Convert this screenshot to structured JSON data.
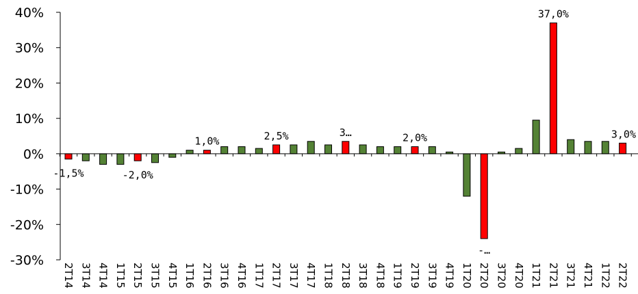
{
  "chart_data": {
    "type": "bar",
    "title": "",
    "xlabel": "",
    "ylabel": "",
    "ylim": [
      -30,
      40
    ],
    "yticks": [
      "-30%",
      "-20%",
      "-10%",
      "0%",
      "10%",
      "20%",
      "30%",
      "40%"
    ],
    "grid": false,
    "legend": "none",
    "categories": [
      "2T14",
      "3T14",
      "4T14",
      "1T15",
      "2T15",
      "3T15",
      "4T15",
      "1T16",
      "2T16",
      "3T16",
      "4T16",
      "1T17",
      "2T17",
      "3T17",
      "4T17",
      "1T18",
      "2T18",
      "3T18",
      "4T18",
      "1T19",
      "2T19",
      "3T19",
      "4T19",
      "1T20",
      "2T20",
      "3T20",
      "4T20",
      "1T21",
      "2T21",
      "3T21",
      "4T21",
      "1T22",
      "2T22"
    ],
    "values": [
      -1.5,
      -2.0,
      -3.0,
      -3.0,
      -2.0,
      -2.5,
      -1.0,
      1.0,
      1.0,
      2.0,
      2.0,
      1.5,
      2.5,
      2.5,
      3.5,
      2.5,
      3.5,
      2.5,
      2.0,
      2.0,
      2.0,
      2.0,
      0.5,
      -12.0,
      -24.0,
      0.5,
      1.5,
      9.5,
      37.0,
      4.0,
      3.5,
      3.5,
      3.0
    ],
    "highlight": [
      true,
      false,
      false,
      false,
      true,
      false,
      false,
      false,
      true,
      false,
      false,
      false,
      true,
      false,
      false,
      false,
      true,
      false,
      false,
      false,
      true,
      false,
      false,
      false,
      true,
      false,
      false,
      false,
      true,
      false,
      false,
      false,
      true
    ],
    "data_labels": [
      "-1,5%",
      "",
      "",
      "",
      "-2,0%",
      "",
      "",
      "",
      "1,0%",
      "",
      "",
      "",
      "2,5%",
      "",
      "",
      "",
      "3…",
      "",
      "",
      "",
      "2,0%",
      "",
      "",
      "",
      "-…",
      "",
      "",
      "",
      "37,0%",
      "",
      "",
      "",
      "3,0%"
    ],
    "colors": {
      "normal": "#548235",
      "highlight": "#ff0000",
      "edge": "#000000",
      "axis": "#000000"
    }
  }
}
